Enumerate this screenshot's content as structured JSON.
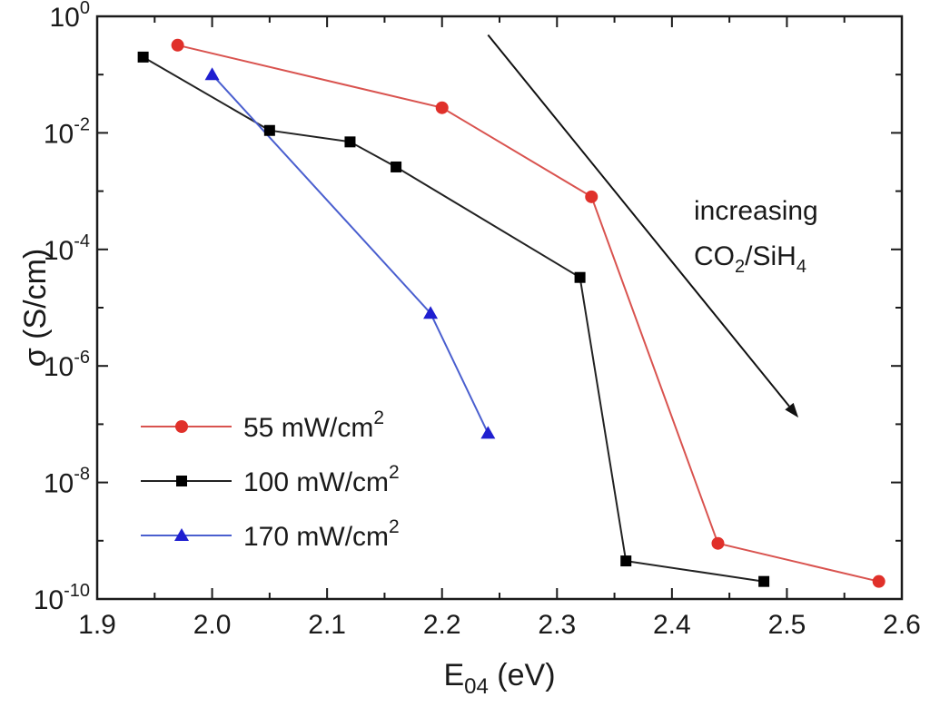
{
  "chart_data": {
    "type": "line",
    "yscale": "log",
    "xlabel": "E04 (eV)",
    "ylabel": "σ (S/cm)",
    "xlim": [
      1.9,
      2.6
    ],
    "ylim": [
      1e-10,
      1
    ],
    "grid": false,
    "legend_position": "bottom-left",
    "x_ticks": [
      "1.9",
      "2.0",
      "2.1",
      "2.2",
      "2.3",
      "2.4",
      "2.5",
      "2.6"
    ],
    "y_ticks": [
      {
        "base": "10",
        "exp": "0"
      },
      {
        "base": "10",
        "exp": "-2"
      },
      {
        "base": "10",
        "exp": "-4"
      },
      {
        "base": "10",
        "exp": "-6"
      },
      {
        "base": "10",
        "exp": "-8"
      },
      {
        "base": "10",
        "exp": "-10"
      }
    ],
    "series": [
      {
        "name": "55 mW/cm2",
        "label_main": "55 mW/cm",
        "label_sup": "2",
        "color": "#e0302a",
        "line_color": "#d9534f",
        "marker": "circle",
        "x": [
          1.97,
          2.2,
          2.33,
          2.44,
          2.58
        ],
        "y": [
          0.32,
          0.027,
          0.0008,
          9e-10,
          2e-10
        ]
      },
      {
        "name": "100 mW/cm2",
        "label_main": "100 mW/cm",
        "label_sup": "2",
        "color": "#000000",
        "line_color": "#222222",
        "marker": "square",
        "x": [
          1.94,
          2.05,
          2.12,
          2.16,
          2.32,
          2.36,
          2.48
        ],
        "y": [
          0.2,
          0.011,
          0.007,
          0.0026,
          3.3e-05,
          4.5e-10,
          2e-10
        ]
      },
      {
        "name": "170 mW/cm2",
        "label_main": "170 mW/cm",
        "label_sup": "2",
        "color": "#1f1fd0",
        "line_color": "#4a5fcf",
        "marker": "triangle",
        "x": [
          2.0,
          2.19,
          2.24
        ],
        "y": [
          0.1,
          8e-06,
          7e-08
        ]
      }
    ],
    "annotation": {
      "line1": "increasing",
      "line2_parts": [
        "CO",
        "2",
        "/SiH",
        "4"
      ],
      "arrow_from": [
        2.24,
        0.48
      ],
      "arrow_to": [
        2.51,
        1.3e-07
      ]
    }
  }
}
